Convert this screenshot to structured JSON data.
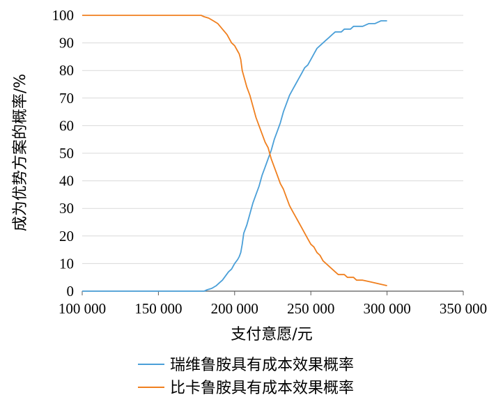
{
  "chart_data": {
    "type": "line",
    "xlabel": "支付意愿/元",
    "ylabel": "成为优势方案的概率/%",
    "xlim": [
      100000,
      350000
    ],
    "ylim": [
      0,
      100
    ],
    "x_ticks": [
      "100 000",
      "150 000",
      "200 000",
      "250 000",
      "300 000",
      "350 000"
    ],
    "y_ticks": [
      "0",
      "10",
      "20",
      "30",
      "40",
      "50",
      "60",
      "70",
      "80",
      "90",
      "100"
    ],
    "grid": "horizontal",
    "legend_position": "bottom-right",
    "series": [
      {
        "name": "瑞维鲁胺具有成本效果概率",
        "color": "#4a9fd8",
        "x": [
          100000,
          180000,
          182000,
          185000,
          188000,
          190000,
          192000,
          194000,
          196000,
          198000,
          200000,
          202000,
          203000,
          204000,
          205000,
          206000,
          208000,
          210000,
          212000,
          214000,
          216000,
          218000,
          220000,
          222000,
          224000,
          226000,
          228000,
          230000,
          232000,
          234000,
          236000,
          238000,
          240000,
          242000,
          244000,
          246000,
          248000,
          250000,
          252000,
          254000,
          256000,
          258000,
          260000,
          262000,
          264000,
          266000,
          268000,
          270000,
          272000,
          274000,
          276000,
          278000,
          280000,
          284000,
          288000,
          292000,
          296000,
          300000
        ],
        "y": [
          0,
          0,
          0.5,
          1,
          2,
          3,
          4,
          5.5,
          7,
          8,
          10,
          11.5,
          12.5,
          14,
          17,
          21,
          24,
          28,
          32,
          35,
          38,
          42,
          45,
          48,
          51,
          55,
          58,
          61,
          65,
          68,
          71,
          73,
          75,
          77,
          79,
          81,
          82,
          84,
          86,
          88,
          89,
          90,
          91,
          92,
          93,
          94,
          94,
          94,
          95,
          95,
          95,
          96,
          96,
          96,
          97,
          97,
          98,
          98
        ]
      },
      {
        "name": "比卡鲁胺具有成本效果概率",
        "color": "#f07f1e",
        "x": [
          100000,
          178000,
          180000,
          183000,
          186000,
          189000,
          192000,
          195000,
          198000,
          200000,
          202000,
          203000,
          204000,
          205000,
          206000,
          208000,
          210000,
          212000,
          214000,
          216000,
          218000,
          220000,
          222000,
          224000,
          226000,
          228000,
          230000,
          232000,
          234000,
          236000,
          238000,
          240000,
          242000,
          244000,
          246000,
          248000,
          250000,
          252000,
          254000,
          256000,
          258000,
          260000,
          262000,
          264000,
          266000,
          268000,
          270000,
          272000,
          274000,
          276000,
          278000,
          280000,
          284000,
          288000,
          292000,
          296000,
          300000
        ],
        "y": [
          100,
          100,
          99.5,
          99,
          98,
          97,
          95,
          93,
          90,
          89,
          87,
          86,
          84,
          80,
          78,
          74,
          71,
          67,
          63,
          60,
          57,
          54,
          52,
          48,
          45,
          42,
          39,
          37,
          34,
          31,
          29,
          27,
          25,
          23,
          21,
          19,
          17,
          16,
          14,
          13,
          11,
          10,
          9,
          8,
          7,
          6,
          6,
          6,
          5,
          5,
          5,
          4,
          4,
          3.5,
          3,
          2.5,
          2
        ]
      }
    ]
  }
}
